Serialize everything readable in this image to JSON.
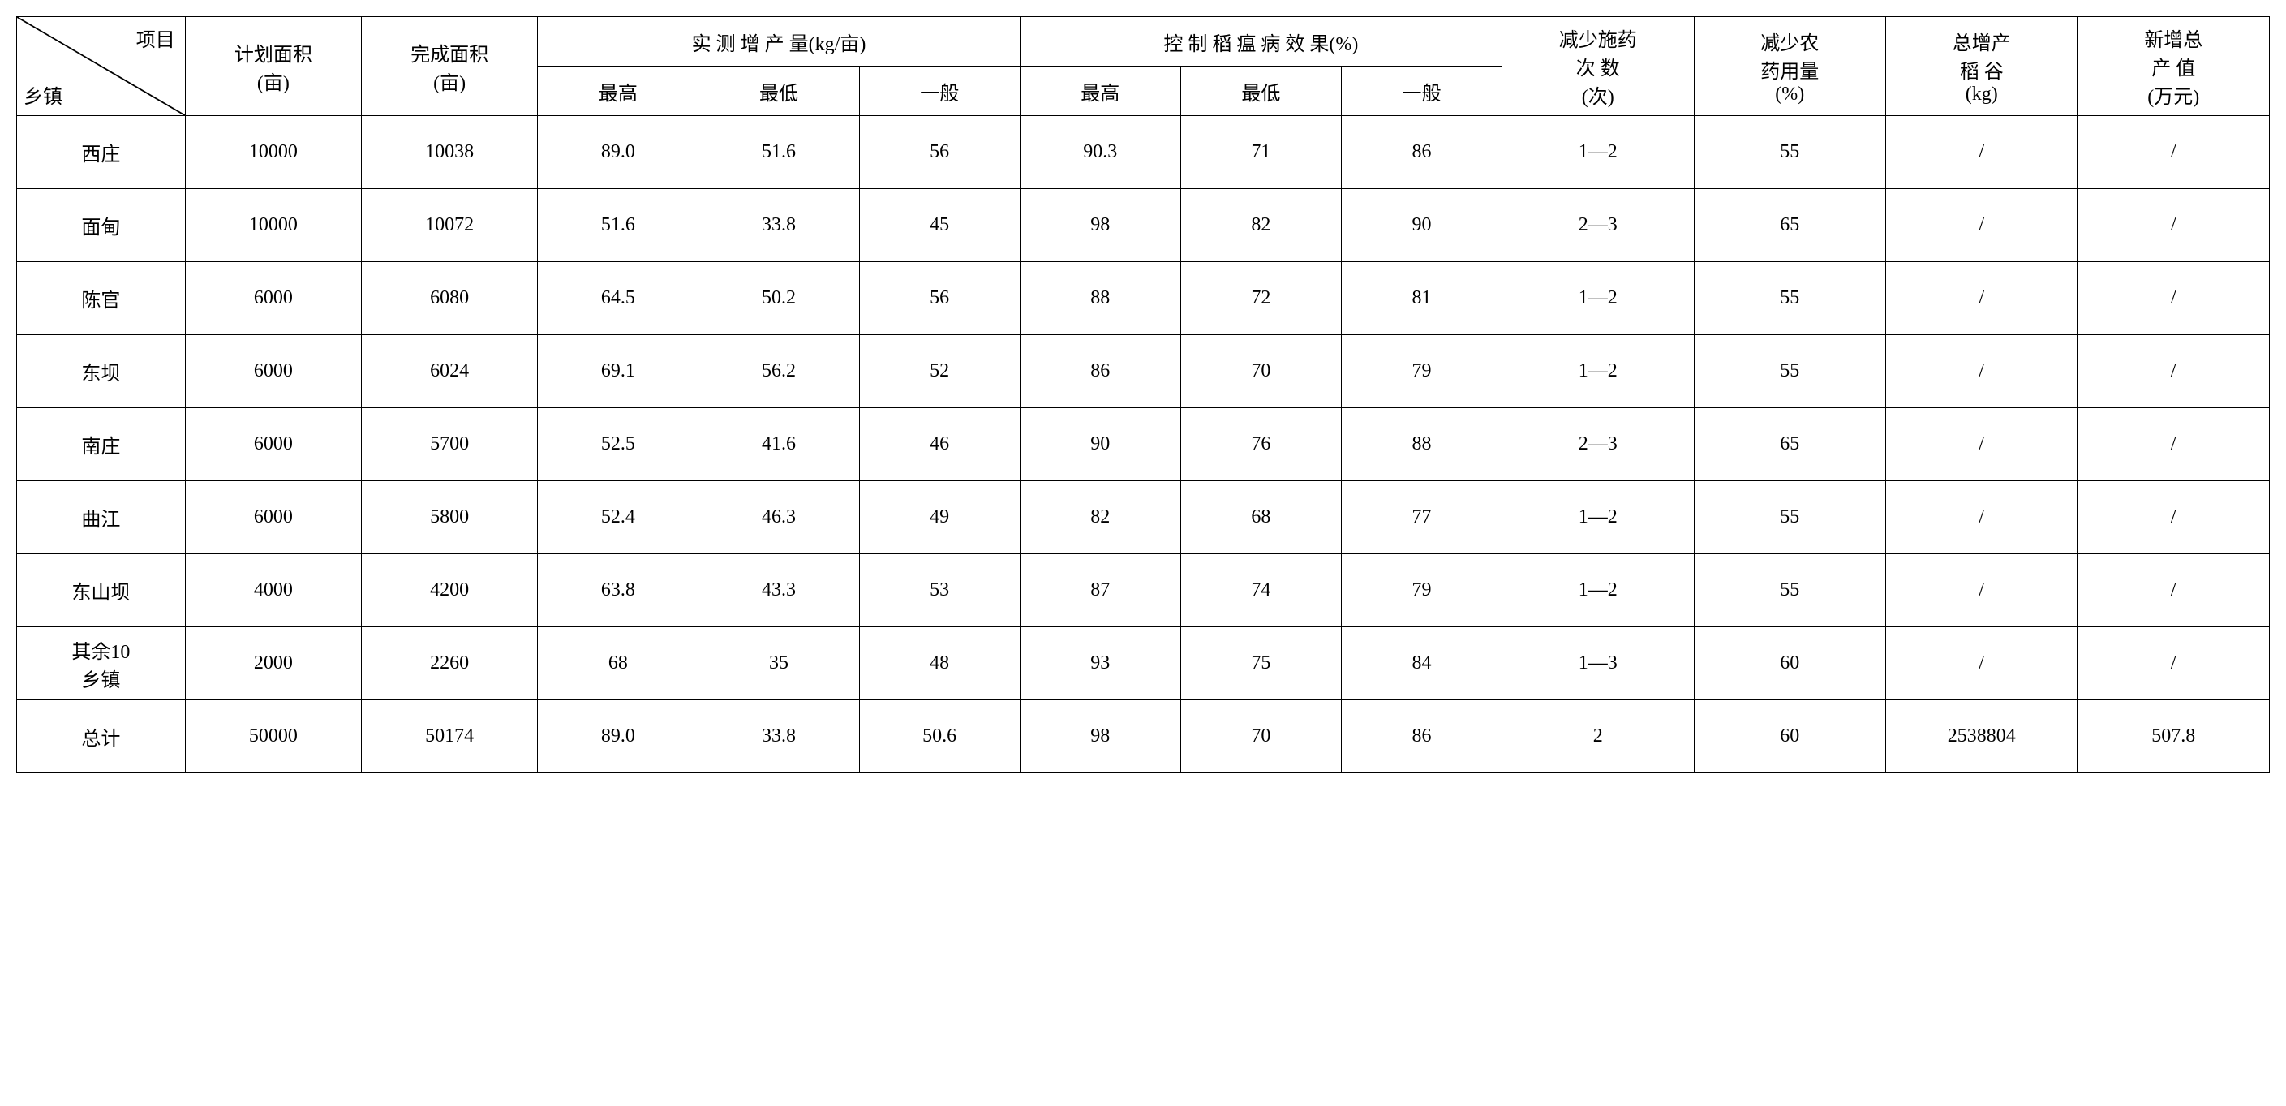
{
  "table": {
    "diagonal": {
      "top": "项目",
      "bottom": "乡镇"
    },
    "headers": {
      "planned_area": "计划面积\n(亩)",
      "completed_area": "完成面积\n(亩)",
      "yield_increase": "实 测 增 产 量(kg/亩)",
      "disease_control": "控 制 稻 瘟 病 效 果(%)",
      "sub_max": "最高",
      "sub_min": "最低",
      "sub_normal": "一般",
      "spray_reduction": "减少施药\n次 数\n(次)",
      "pesticide_reduction": "减少农\n药用量\n(%)",
      "total_rice": "总增产\n稻 谷\n(kg)",
      "new_value": "新增总\n产 值\n(万元)"
    },
    "rows": [
      {
        "town": "西庄",
        "planned": "10000",
        "completed": "10038",
        "y_max": "89.0",
        "y_min": "51.6",
        "y_norm": "56",
        "c_max": "90.3",
        "c_min": "71",
        "c_norm": "86",
        "spray": "1—2",
        "pest": "55",
        "rice": "/",
        "val": "/"
      },
      {
        "town": "面甸",
        "planned": "10000",
        "completed": "10072",
        "y_max": "51.6",
        "y_min": "33.8",
        "y_norm": "45",
        "c_max": "98",
        "c_min": "82",
        "c_norm": "90",
        "spray": "2—3",
        "pest": "65",
        "rice": "/",
        "val": "/"
      },
      {
        "town": "陈官",
        "planned": "6000",
        "completed": "6080",
        "y_max": "64.5",
        "y_min": "50.2",
        "y_norm": "56",
        "c_max": "88",
        "c_min": "72",
        "c_norm": "81",
        "spray": "1—2",
        "pest": "55",
        "rice": "/",
        "val": "/"
      },
      {
        "town": "东坝",
        "planned": "6000",
        "completed": "6024",
        "y_max": "69.1",
        "y_min": "56.2",
        "y_norm": "52",
        "c_max": "86",
        "c_min": "70",
        "c_norm": "79",
        "spray": "1—2",
        "pest": "55",
        "rice": "/",
        "val": "/"
      },
      {
        "town": "南庄",
        "planned": "6000",
        "completed": "5700",
        "y_max": "52.5",
        "y_min": "41.6",
        "y_norm": "46",
        "c_max": "90",
        "c_min": "76",
        "c_norm": "88",
        "spray": "2—3",
        "pest": "65",
        "rice": "/",
        "val": "/"
      },
      {
        "town": "曲江",
        "planned": "6000",
        "completed": "5800",
        "y_max": "52.4",
        "y_min": "46.3",
        "y_norm": "49",
        "c_max": "82",
        "c_min": "68",
        "c_norm": "77",
        "spray": "1—2",
        "pest": "55",
        "rice": "/",
        "val": "/"
      },
      {
        "town": "东山坝",
        "planned": "4000",
        "completed": "4200",
        "y_max": "63.8",
        "y_min": "43.3",
        "y_norm": "53",
        "c_max": "87",
        "c_min": "74",
        "c_norm": "79",
        "spray": "1—2",
        "pest": "55",
        "rice": "/",
        "val": "/"
      },
      {
        "town": "其余10\n乡镇",
        "planned": "2000",
        "completed": "2260",
        "y_max": "68",
        "y_min": "35",
        "y_norm": "48",
        "c_max": "93",
        "c_min": "75",
        "c_norm": "84",
        "spray": "1—3",
        "pest": "60",
        "rice": "/",
        "val": "/"
      },
      {
        "town": "总计",
        "planned": "50000",
        "completed": "50174",
        "y_max": "89.0",
        "y_min": "33.8",
        "y_norm": "50.6",
        "c_max": "98",
        "c_min": "70",
        "c_norm": "86",
        "spray": "2",
        "pest": "60",
        "rice": "2538804",
        "val": "507.8"
      }
    ],
    "colors": {
      "border": "#000000",
      "background": "#ffffff",
      "text": "#000000"
    },
    "font_size": 24,
    "border_width": 1.5
  }
}
